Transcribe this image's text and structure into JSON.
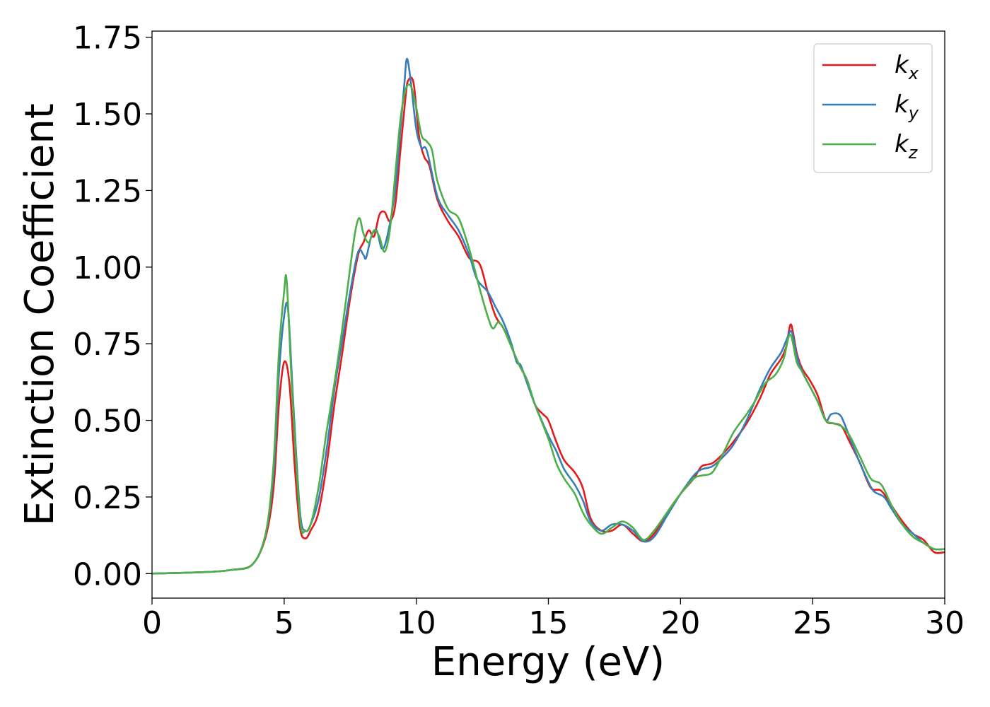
{
  "chart_data": {
    "type": "line",
    "xlabel": "Energy (eV)",
    "ylabel": "Extinction Coefficient",
    "xlim": [
      0,
      30
    ],
    "ylim": [
      -0.08,
      1.77
    ],
    "x_ticks": [
      0,
      5,
      10,
      15,
      20,
      25,
      30
    ],
    "x_tick_labels": [
      "0",
      "5",
      "10",
      "15",
      "20",
      "25",
      "30"
    ],
    "y_ticks": [
      0,
      0.25,
      0.5,
      0.75,
      1.0,
      1.25,
      1.5,
      1.75
    ],
    "y_tick_labels": [
      "0.00",
      "0.25",
      "0.50",
      "0.75",
      "1.00",
      "1.25",
      "1.50",
      "1.75"
    ],
    "grid": false,
    "legend_position": "top-right",
    "series": [
      {
        "name": "k",
        "subscript": "x",
        "color": "#e41a1c",
        "points": [
          [
            0,
            0
          ],
          [
            2,
            0.005
          ],
          [
            3,
            0.012
          ],
          [
            3.8,
            0.03
          ],
          [
            4.3,
            0.12
          ],
          [
            4.6,
            0.28
          ],
          [
            4.8,
            0.55
          ],
          [
            5.0,
            0.69
          ],
          [
            5.2,
            0.62
          ],
          [
            5.4,
            0.35
          ],
          [
            5.6,
            0.15
          ],
          [
            5.8,
            0.115
          ],
          [
            6.0,
            0.14
          ],
          [
            6.3,
            0.2
          ],
          [
            6.6,
            0.35
          ],
          [
            6.9,
            0.55
          ],
          [
            7.2,
            0.72
          ],
          [
            7.5,
            0.9
          ],
          [
            7.8,
            1.04
          ],
          [
            8.0,
            1.08
          ],
          [
            8.2,
            1.12
          ],
          [
            8.4,
            1.1
          ],
          [
            8.6,
            1.17
          ],
          [
            8.8,
            1.18
          ],
          [
            9.0,
            1.15
          ],
          [
            9.2,
            1.2
          ],
          [
            9.4,
            1.38
          ],
          [
            9.6,
            1.56
          ],
          [
            9.7,
            1.61
          ],
          [
            9.9,
            1.6
          ],
          [
            10.1,
            1.43
          ],
          [
            10.3,
            1.36
          ],
          [
            10.5,
            1.33
          ],
          [
            10.8,
            1.22
          ],
          [
            11.2,
            1.15
          ],
          [
            11.6,
            1.1
          ],
          [
            12.0,
            1.03
          ],
          [
            12.4,
            1.01
          ],
          [
            12.7,
            0.92
          ],
          [
            13.0,
            0.84
          ],
          [
            13.3,
            0.8
          ],
          [
            13.6,
            0.74
          ],
          [
            13.9,
            0.68
          ],
          [
            14.2,
            0.63
          ],
          [
            14.5,
            0.55
          ],
          [
            14.8,
            0.52
          ],
          [
            15.0,
            0.5
          ],
          [
            15.3,
            0.43
          ],
          [
            15.6,
            0.37
          ],
          [
            16.0,
            0.33
          ],
          [
            16.3,
            0.28
          ],
          [
            16.6,
            0.18
          ],
          [
            17.0,
            0.14
          ],
          [
            17.4,
            0.14
          ],
          [
            17.8,
            0.16
          ],
          [
            18.2,
            0.13
          ],
          [
            18.6,
            0.105
          ],
          [
            19.0,
            0.13
          ],
          [
            19.5,
            0.2
          ],
          [
            20.0,
            0.26
          ],
          [
            20.5,
            0.31
          ],
          [
            20.8,
            0.35
          ],
          [
            21.2,
            0.36
          ],
          [
            21.6,
            0.39
          ],
          [
            22.0,
            0.43
          ],
          [
            22.5,
            0.49
          ],
          [
            23.0,
            0.57
          ],
          [
            23.4,
            0.65
          ],
          [
            23.8,
            0.7
          ],
          [
            24.0,
            0.74
          ],
          [
            24.1,
            0.79
          ],
          [
            24.2,
            0.81
          ],
          [
            24.4,
            0.72
          ],
          [
            24.6,
            0.67
          ],
          [
            24.9,
            0.63
          ],
          [
            25.2,
            0.58
          ],
          [
            25.5,
            0.5
          ],
          [
            25.8,
            0.49
          ],
          [
            26.1,
            0.48
          ],
          [
            26.4,
            0.43
          ],
          [
            26.8,
            0.36
          ],
          [
            27.2,
            0.28
          ],
          [
            27.6,
            0.27
          ],
          [
            28.0,
            0.22
          ],
          [
            28.4,
            0.17
          ],
          [
            28.8,
            0.13
          ],
          [
            29.2,
            0.11
          ],
          [
            29.6,
            0.07
          ],
          [
            30.0,
            0.07
          ]
        ]
      },
      {
        "name": "k",
        "subscript": "y",
        "color": "#377eb8",
        "points": [
          [
            0,
            0
          ],
          [
            2,
            0.005
          ],
          [
            3,
            0.012
          ],
          [
            3.8,
            0.03
          ],
          [
            4.3,
            0.13
          ],
          [
            4.6,
            0.33
          ],
          [
            4.8,
            0.65
          ],
          [
            5.0,
            0.84
          ],
          [
            5.15,
            0.86
          ],
          [
            5.35,
            0.55
          ],
          [
            5.6,
            0.2
          ],
          [
            5.8,
            0.14
          ],
          [
            6.0,
            0.16
          ],
          [
            6.3,
            0.24
          ],
          [
            6.6,
            0.4
          ],
          [
            6.9,
            0.6
          ],
          [
            7.2,
            0.76
          ],
          [
            7.5,
            0.92
          ],
          [
            7.8,
            1.05
          ],
          [
            8.0,
            1.04
          ],
          [
            8.1,
            1.03
          ],
          [
            8.3,
            1.1
          ],
          [
            8.5,
            1.12
          ],
          [
            8.7,
            1.06
          ],
          [
            8.9,
            1.1
          ],
          [
            9.2,
            1.25
          ],
          [
            9.4,
            1.45
          ],
          [
            9.55,
            1.6
          ],
          [
            9.65,
            1.68
          ],
          [
            9.8,
            1.6
          ],
          [
            10.0,
            1.45
          ],
          [
            10.2,
            1.39
          ],
          [
            10.4,
            1.38
          ],
          [
            10.8,
            1.23
          ],
          [
            11.2,
            1.17
          ],
          [
            11.6,
            1.12
          ],
          [
            12.0,
            1.04
          ],
          [
            12.3,
            0.96
          ],
          [
            12.7,
            0.92
          ],
          [
            13.0,
            0.87
          ],
          [
            13.3,
            0.82
          ],
          [
            13.6,
            0.75
          ],
          [
            13.8,
            0.69
          ],
          [
            13.95,
            0.68
          ],
          [
            14.2,
            0.62
          ],
          [
            14.5,
            0.55
          ],
          [
            15.0,
            0.45
          ],
          [
            15.3,
            0.4
          ],
          [
            15.6,
            0.34
          ],
          [
            16.0,
            0.29
          ],
          [
            16.3,
            0.24
          ],
          [
            16.6,
            0.17
          ],
          [
            17.0,
            0.14
          ],
          [
            17.4,
            0.16
          ],
          [
            17.8,
            0.16
          ],
          [
            18.2,
            0.14
          ],
          [
            18.6,
            0.105
          ],
          [
            19.0,
            0.12
          ],
          [
            19.5,
            0.19
          ],
          [
            20.0,
            0.26
          ],
          [
            20.5,
            0.32
          ],
          [
            20.8,
            0.34
          ],
          [
            21.2,
            0.35
          ],
          [
            21.6,
            0.38
          ],
          [
            22.0,
            0.42
          ],
          [
            22.5,
            0.5
          ],
          [
            23.0,
            0.6
          ],
          [
            23.4,
            0.67
          ],
          [
            23.8,
            0.72
          ],
          [
            24.0,
            0.76
          ],
          [
            24.2,
            0.79
          ],
          [
            24.4,
            0.71
          ],
          [
            24.6,
            0.66
          ],
          [
            24.9,
            0.61
          ],
          [
            25.2,
            0.56
          ],
          [
            25.5,
            0.5
          ],
          [
            25.7,
            0.52
          ],
          [
            26.0,
            0.52
          ],
          [
            26.2,
            0.49
          ],
          [
            26.6,
            0.4
          ],
          [
            27.0,
            0.32
          ],
          [
            27.3,
            0.27
          ],
          [
            27.7,
            0.25
          ],
          [
            28.0,
            0.21
          ],
          [
            28.4,
            0.16
          ],
          [
            28.8,
            0.13
          ],
          [
            29.2,
            0.1
          ],
          [
            29.6,
            0.08
          ],
          [
            30.0,
            0.08
          ]
        ]
      },
      {
        "name": "k",
        "subscript": "z",
        "color": "#4daf4a",
        "points": [
          [
            0,
            0
          ],
          [
            2,
            0.005
          ],
          [
            3,
            0.012
          ],
          [
            3.8,
            0.03
          ],
          [
            4.3,
            0.13
          ],
          [
            4.6,
            0.36
          ],
          [
            4.8,
            0.72
          ],
          [
            5.0,
            0.92
          ],
          [
            5.1,
            0.95
          ],
          [
            5.3,
            0.6
          ],
          [
            5.6,
            0.18
          ],
          [
            5.8,
            0.14
          ],
          [
            6.0,
            0.16
          ],
          [
            6.3,
            0.28
          ],
          [
            6.6,
            0.46
          ],
          [
            6.9,
            0.62
          ],
          [
            7.2,
            0.8
          ],
          [
            7.5,
            1.0
          ],
          [
            7.7,
            1.12
          ],
          [
            7.85,
            1.16
          ],
          [
            8.0,
            1.11
          ],
          [
            8.2,
            1.08
          ],
          [
            8.4,
            1.12
          ],
          [
            8.6,
            1.1
          ],
          [
            8.8,
            1.05
          ],
          [
            9.0,
            1.12
          ],
          [
            9.2,
            1.3
          ],
          [
            9.4,
            1.48
          ],
          [
            9.6,
            1.58
          ],
          [
            9.8,
            1.59
          ],
          [
            10.0,
            1.52
          ],
          [
            10.2,
            1.43
          ],
          [
            10.4,
            1.41
          ],
          [
            10.6,
            1.38
          ],
          [
            10.8,
            1.28
          ],
          [
            11.2,
            1.19
          ],
          [
            11.6,
            1.16
          ],
          [
            12.0,
            1.06
          ],
          [
            12.4,
            0.93
          ],
          [
            12.7,
            0.84
          ],
          [
            12.9,
            0.8
          ],
          [
            13.1,
            0.82
          ],
          [
            13.3,
            0.8
          ],
          [
            13.6,
            0.74
          ],
          [
            13.9,
            0.68
          ],
          [
            14.2,
            0.63
          ],
          [
            14.5,
            0.55
          ],
          [
            15.0,
            0.44
          ],
          [
            15.3,
            0.36
          ],
          [
            15.6,
            0.31
          ],
          [
            16.0,
            0.26
          ],
          [
            16.3,
            0.2
          ],
          [
            16.6,
            0.16
          ],
          [
            17.0,
            0.13
          ],
          [
            17.4,
            0.15
          ],
          [
            17.8,
            0.17
          ],
          [
            18.2,
            0.15
          ],
          [
            18.6,
            0.11
          ],
          [
            19.0,
            0.14
          ],
          [
            19.5,
            0.2
          ],
          [
            20.0,
            0.26
          ],
          [
            20.5,
            0.31
          ],
          [
            20.8,
            0.32
          ],
          [
            21.2,
            0.33
          ],
          [
            21.6,
            0.39
          ],
          [
            22.0,
            0.46
          ],
          [
            22.5,
            0.52
          ],
          [
            22.8,
            0.56
          ],
          [
            23.2,
            0.62
          ],
          [
            23.6,
            0.65
          ],
          [
            23.9,
            0.7
          ],
          [
            24.15,
            0.78
          ],
          [
            24.4,
            0.69
          ],
          [
            24.6,
            0.66
          ],
          [
            24.9,
            0.61
          ],
          [
            25.2,
            0.56
          ],
          [
            25.5,
            0.5
          ],
          [
            25.8,
            0.49
          ],
          [
            26.1,
            0.48
          ],
          [
            26.4,
            0.45
          ],
          [
            26.8,
            0.38
          ],
          [
            27.2,
            0.31
          ],
          [
            27.6,
            0.29
          ],
          [
            28.0,
            0.22
          ],
          [
            28.4,
            0.16
          ],
          [
            28.8,
            0.12
          ],
          [
            29.2,
            0.1
          ],
          [
            29.6,
            0.08
          ],
          [
            30.0,
            0.08
          ]
        ]
      }
    ]
  }
}
